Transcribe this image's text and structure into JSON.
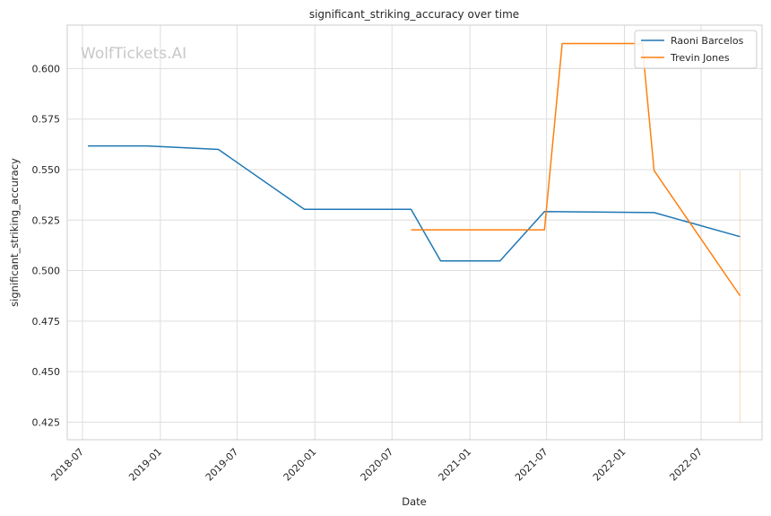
{
  "chart_data": {
    "type": "line",
    "title": "significant_striking_accuracy over time",
    "xlabel": "Date",
    "ylabel": "significant_striking_accuracy",
    "watermark": "WolfTickets.AI",
    "grid": true,
    "legend_position": "top-right",
    "xlim": [
      "2018-05-26",
      "2022-11-22"
    ],
    "ylim": [
      0.4163,
      0.6215
    ],
    "x_ticks": [
      "2018-07",
      "2019-01",
      "2019-07",
      "2020-01",
      "2020-07",
      "2021-01",
      "2021-07",
      "2022-01",
      "2022-07"
    ],
    "y_ticks": [
      "0.425",
      "0.450",
      "0.475",
      "0.500",
      "0.525",
      "0.550",
      "0.575",
      "0.600"
    ],
    "series": [
      {
        "name": "Raoni Barcelos",
        "color": "#1f77b4",
        "x": [
          "2018-07-14",
          "2018-12-01",
          "2019-05-18",
          "2019-12-07",
          "2020-08-15",
          "2020-10-24",
          "2021-03-13",
          "2021-06-26",
          "2022-03-12",
          "2022-10-01"
        ],
        "y": [
          0.5617,
          0.5617,
          0.56,
          0.5303,
          0.5303,
          0.5048,
          0.5048,
          0.5292,
          0.5287,
          0.5168
        ]
      },
      {
        "name": "Trevin Jones",
        "color": "#ff7f0e",
        "x": [
          "2020-08-15",
          "2021-06-26",
          "2021-08-07",
          "2022-02-12",
          "2022-03-12",
          "2022-10-01"
        ],
        "y": [
          0.5202,
          0.5202,
          0.6124,
          0.6124,
          0.5495,
          0.4876
        ]
      }
    ],
    "vline": {
      "x": "2022-10-01",
      "ymin": 0.425,
      "ymax": 0.5495,
      "color": "#ff7f0e"
    }
  }
}
